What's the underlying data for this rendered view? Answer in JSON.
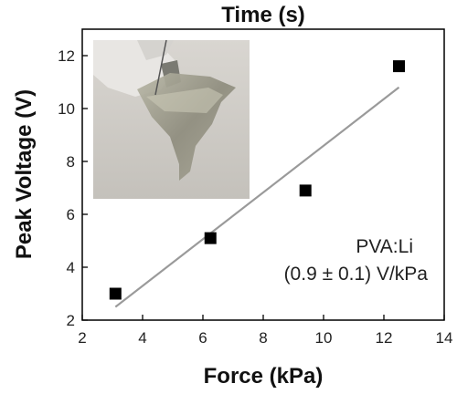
{
  "chart_data": {
    "type": "scatter",
    "top_title": "Time (s)",
    "xlabel": "Force (kPa)",
    "ylabel": "Peak Voltage (V)",
    "xlim": [
      2,
      14
    ],
    "ylim": [
      2,
      13
    ],
    "xticks": [
      2,
      4,
      6,
      8,
      10,
      12,
      14
    ],
    "yticks": [
      2,
      4,
      6,
      8,
      10,
      12
    ],
    "series": [
      {
        "points": [
          {
            "x": 3.1,
            "y": 3.0
          },
          {
            "x": 6.25,
            "y": 5.1
          },
          {
            "x": 9.4,
            "y": 6.9
          },
          {
            "x": 12.5,
            "y": 11.6
          }
        ],
        "marker": "square",
        "color": "#000000"
      }
    ],
    "fit_line": {
      "from": {
        "x": 3.1,
        "y": 2.5
      },
      "to": {
        "x": 12.5,
        "y": 10.8
      },
      "color": "#9a9a9a"
    },
    "annotation": {
      "line1": "PVA:Li",
      "line2": "(0.9 ± 0.1) V/kPa"
    },
    "inset_image": {
      "description_icon": "photo-inset-icon"
    },
    "grid": false
  }
}
